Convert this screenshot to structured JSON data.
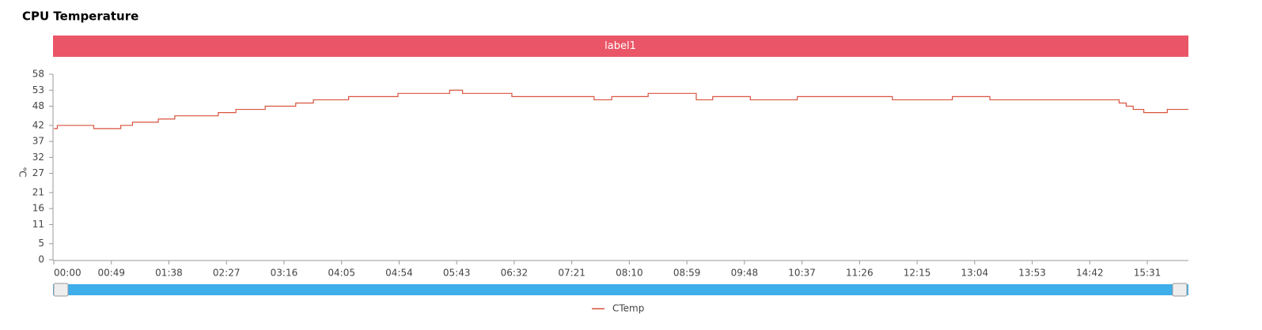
{
  "chart_data": {
    "type": "line",
    "title": "CPU Temperature",
    "band_label": "label1",
    "band_color": "#ea5667",
    "y_label": "℃",
    "step": true,
    "x": [
      0,
      3,
      34,
      57,
      67,
      89,
      103,
      140,
      155,
      180,
      206,
      221,
      251,
      293,
      337,
      348,
      390,
      460,
      475,
      506,
      547,
      561,
      593,
      633,
      714,
      765,
      797,
      907,
      913,
      919,
      928,
      948,
      966
    ],
    "series": [
      {
        "name": "CTemp",
        "color": "#d9533e",
        "values": [
          41,
          42,
          41,
          42,
          43,
          44,
          45,
          46,
          47,
          48,
          49,
          50,
          51,
          52,
          53,
          52,
          51,
          50,
          51,
          52,
          50,
          51,
          50,
          51,
          50,
          51,
          50,
          49,
          48,
          47,
          46,
          47,
          47
        ]
      }
    ],
    "xlim": [
      0,
      966
    ],
    "xticks": [
      {
        "value": 0,
        "label": "00:00"
      },
      {
        "value": 49,
        "label": "00:49"
      },
      {
        "value": 98,
        "label": "01:38"
      },
      {
        "value": 147,
        "label": "02:27"
      },
      {
        "value": 196,
        "label": "03:16"
      },
      {
        "value": 245,
        "label": "04:05"
      },
      {
        "value": 294,
        "label": "04:54"
      },
      {
        "value": 343,
        "label": "05:43"
      },
      {
        "value": 392,
        "label": "06:32"
      },
      {
        "value": 441,
        "label": "07:21"
      },
      {
        "value": 490,
        "label": "08:10"
      },
      {
        "value": 539,
        "label": "08:59"
      },
      {
        "value": 588,
        "label": "09:48"
      },
      {
        "value": 637,
        "label": "10:37"
      },
      {
        "value": 686,
        "label": "11:26"
      },
      {
        "value": 735,
        "label": "12:15"
      },
      {
        "value": 784,
        "label": "13:04"
      },
      {
        "value": 833,
        "label": "13:53"
      },
      {
        "value": 882,
        "label": "14:42"
      },
      {
        "value": 931,
        "label": "15:31"
      }
    ],
    "ylim": [
      0,
      58
    ],
    "yticks": [
      0,
      5,
      11,
      16,
      21,
      27,
      32,
      37,
      42,
      48,
      53,
      58
    ]
  }
}
